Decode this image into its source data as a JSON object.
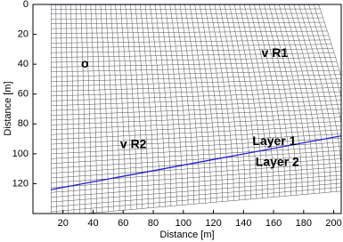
{
  "chart_data": {
    "type": "line",
    "xlabel": "Distance [m]",
    "ylabel": "Distance [m]",
    "xlim": [
      0,
      205
    ],
    "ylim": [
      140,
      0
    ],
    "xticks": [
      20,
      40,
      60,
      80,
      100,
      120,
      140,
      160,
      180,
      200
    ],
    "yticks": [
      0,
      20,
      40,
      60,
      80,
      100,
      120
    ],
    "series": [
      {
        "x": [
          12,
          190
        ],
        "values": [
          0,
          0
        ],
        "color": "#1f1fcf"
      },
      {
        "x": [
          12,
          205
        ],
        "values": [
          124,
          88
        ],
        "color": "#1f1fcf"
      }
    ],
    "annotations": [
      {
        "text": "o",
        "x": 32,
        "y": 40
      },
      {
        "text": "v R1",
        "x": 152,
        "y": 33
      },
      {
        "text": "v R2",
        "x": 58,
        "y": 94
      },
      {
        "text": "Layer 1",
        "x": 146,
        "y": 92
      },
      {
        "text": "Layer 2",
        "x": 148,
        "y": 106
      }
    ]
  }
}
